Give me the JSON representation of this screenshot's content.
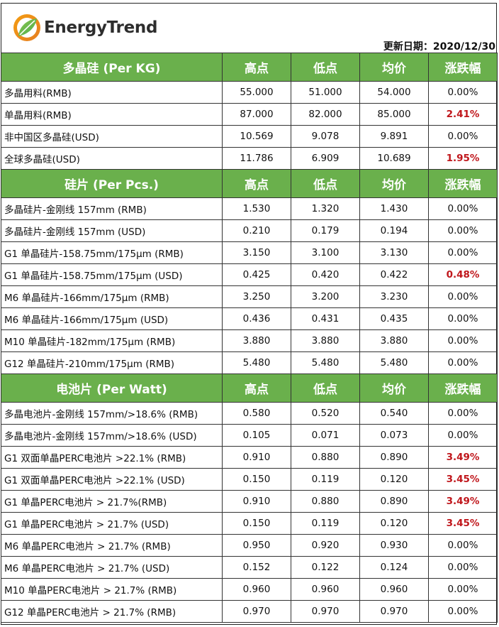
{
  "brand": {
    "name": "EnergyTrend"
  },
  "update_date": "更新日期：2020/12/30",
  "columns": [
    "高点",
    "低点",
    "均价",
    "涨跌幅"
  ],
  "colors": {
    "header_green": "#6ab04c",
    "up_red": "#c0171c"
  },
  "sections": [
    {
      "title": "多晶硅 (Per KG)",
      "rows": [
        [
          "多晶用料(RMB)",
          "55.000",
          "51.000",
          "54.000",
          "0.00%"
        ],
        [
          "单晶用料(RMB)",
          "87.000",
          "82.000",
          "85.000",
          "2.41%"
        ],
        [
          "非中国区多晶硅(USD)",
          "10.569",
          "9.078",
          "9.891",
          "0.00%"
        ],
        [
          "全球多晶硅(USD)",
          "11.786",
          "6.909",
          "10.689",
          "1.95%"
        ]
      ]
    },
    {
      "title": "硅片 (Per Pcs.)",
      "rows": [
        [
          "多晶硅片-金刚线 157mm (RMB)",
          "1.530",
          "1.320",
          "1.430",
          "0.00%"
        ],
        [
          "多晶硅片-金刚线 157mm (USD)",
          "0.210",
          "0.179",
          "0.194",
          "0.00%"
        ],
        [
          "G1 单晶硅片-158.75mm/175μm (RMB)",
          "3.150",
          "3.100",
          "3.130",
          "0.00%"
        ],
        [
          "G1 单晶硅片-158.75mm/175μm (USD)",
          "0.425",
          "0.420",
          "0.422",
          "0.48%"
        ],
        [
          "M6 单晶硅片-166mm/175μm (RMB)",
          "3.250",
          "3.200",
          "3.230",
          "0.00%"
        ],
        [
          "M6 单晶硅片-166mm/175μm (USD)",
          "0.436",
          "0.431",
          "0.435",
          "0.00%"
        ],
        [
          "M10 单晶硅片-182mm/175μm (RMB)",
          "3.880",
          "3.880",
          "3.880",
          "0.00%"
        ],
        [
          "G12 单晶硅片-210mm/175μm  (RMB)",
          "5.480",
          "5.480",
          "5.480",
          "0.00%"
        ]
      ]
    },
    {
      "title": "电池片 (Per Watt)",
      "rows": [
        [
          "多晶电池片-金刚线 157mm/>18.6% (RMB)",
          "0.580",
          "0.520",
          "0.540",
          "0.00%"
        ],
        [
          "多晶电池片-金刚线 157mm/>18.6% (USD)",
          "0.105",
          "0.071",
          "0.073",
          "0.00%"
        ],
        [
          "G1 双面单晶PERC电池片  >22.1% (RMB)",
          "0.910",
          "0.880",
          "0.890",
          "3.49%"
        ],
        [
          "G1 双面单晶PERC电池片  >22.1% (USD)",
          "0.150",
          "0.119",
          "0.120",
          "3.45%"
        ],
        [
          "G1 单晶PERC电池片   > 21.7%(RMB)",
          "0.910",
          "0.880",
          "0.890",
          "3.49%"
        ],
        [
          "G1 单晶PERC电池片   > 21.7%  (USD)",
          "0.150",
          "0.119",
          "0.120",
          "3.45%"
        ],
        [
          "M6 单晶PERC电池片  > 21.7% (RMB)",
          "0.950",
          "0.920",
          "0.930",
          "0.00%"
        ],
        [
          "M6 单晶PERC电池片  > 21.7% (USD)",
          "0.152",
          "0.122",
          "0.124",
          "0.00%"
        ],
        [
          "M10 单晶PERC电池片  > 21.7% (RMB)",
          "0.960",
          "0.960",
          "0.960",
          "0.00%"
        ],
        [
          "G12 单晶PERC电池片  > 21.7% (RMB)",
          "0.970",
          "0.970",
          "0.970",
          "0.00%"
        ]
      ]
    }
  ]
}
